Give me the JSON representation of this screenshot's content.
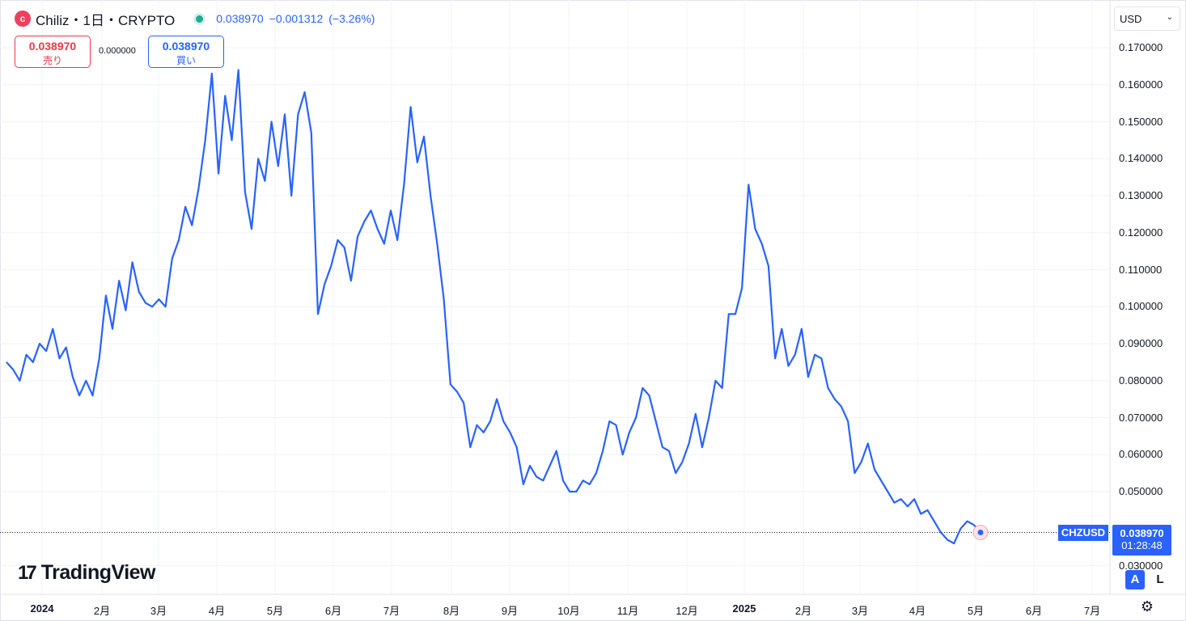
{
  "header": {
    "logo_glyph": "c",
    "symbol_title": "Chiliz・1日・CRYPTO",
    "price": "0.038970",
    "change": "−0.001312",
    "change_pct": "(−3.26%)"
  },
  "quote": {
    "sell_price": "0.038970",
    "sell_label": "売り",
    "spread": "0.000000",
    "buy_price": "0.038970",
    "buy_label": "買い"
  },
  "currency_select": {
    "value": "USD"
  },
  "last_price_label": {
    "symbol": "CHZUSD",
    "price": "0.038970",
    "countdown": "01:28:48"
  },
  "branding": {
    "text": "TradingView"
  },
  "scale_buttons": {
    "auto": "A",
    "log": "L"
  },
  "colors": {
    "line": "#2962ff",
    "accent": "#2962ff",
    "sell": "#f23645",
    "live_dot": "#22ab94"
  },
  "chart_data": {
    "type": "line",
    "series": [
      {
        "values": [
          [
            0,
            0.085
          ],
          [
            1,
            0.083
          ],
          [
            2,
            0.08
          ],
          [
            3,
            0.087
          ],
          [
            4,
            0.085
          ],
          [
            5,
            0.09
          ],
          [
            6,
            0.088
          ],
          [
            7,
            0.094
          ],
          [
            8,
            0.086
          ],
          [
            9,
            0.089
          ],
          [
            10,
            0.081
          ],
          [
            11,
            0.076
          ],
          [
            12,
            0.08
          ],
          [
            13,
            0.076
          ],
          [
            14,
            0.086
          ],
          [
            15,
            0.103
          ],
          [
            16,
            0.094
          ],
          [
            17,
            0.107
          ],
          [
            18,
            0.099
          ],
          [
            19,
            0.112
          ],
          [
            20,
            0.104
          ],
          [
            21,
            0.101
          ],
          [
            22,
            0.1
          ],
          [
            23,
            0.102
          ],
          [
            24,
            0.1
          ],
          [
            25,
            0.113
          ],
          [
            26,
            0.118
          ],
          [
            27,
            0.127
          ],
          [
            28,
            0.122
          ],
          [
            29,
            0.132
          ],
          [
            30,
            0.145
          ],
          [
            31,
            0.163
          ],
          [
            32,
            0.136
          ],
          [
            33,
            0.157
          ],
          [
            34,
            0.145
          ],
          [
            35,
            0.164
          ],
          [
            36,
            0.131
          ],
          [
            37,
            0.121
          ],
          [
            38,
            0.14
          ],
          [
            39,
            0.134
          ],
          [
            40,
            0.15
          ],
          [
            41,
            0.138
          ],
          [
            42,
            0.152
          ],
          [
            43,
            0.13
          ],
          [
            44,
            0.152
          ],
          [
            45,
            0.158
          ],
          [
            46,
            0.147
          ],
          [
            47,
            0.098
          ],
          [
            48,
            0.106
          ],
          [
            49,
            0.111
          ],
          [
            50,
            0.118
          ],
          [
            51,
            0.116
          ],
          [
            52,
            0.107
          ],
          [
            53,
            0.119
          ],
          [
            54,
            0.123
          ],
          [
            55,
            0.126
          ],
          [
            56,
            0.121
          ],
          [
            57,
            0.117
          ],
          [
            58,
            0.126
          ],
          [
            59,
            0.118
          ],
          [
            60,
            0.133
          ],
          [
            61,
            0.154
          ],
          [
            62,
            0.139
          ],
          [
            63,
            0.146
          ],
          [
            64,
            0.13
          ],
          [
            65,
            0.117
          ],
          [
            66,
            0.102
          ],
          [
            67,
            0.079
          ],
          [
            68,
            0.077
          ],
          [
            69,
            0.074
          ],
          [
            70,
            0.062
          ],
          [
            71,
            0.068
          ],
          [
            72,
            0.066
          ],
          [
            73,
            0.069
          ],
          [
            74,
            0.075
          ],
          [
            75,
            0.069
          ],
          [
            76,
            0.066
          ],
          [
            77,
            0.062
          ],
          [
            78,
            0.052
          ],
          [
            79,
            0.057
          ],
          [
            80,
            0.054
          ],
          [
            81,
            0.053
          ],
          [
            82,
            0.057
          ],
          [
            83,
            0.061
          ],
          [
            84,
            0.053
          ],
          [
            85,
            0.05
          ],
          [
            86,
            0.05
          ],
          [
            87,
            0.053
          ],
          [
            88,
            0.052
          ],
          [
            89,
            0.055
          ],
          [
            90,
            0.061
          ],
          [
            91,
            0.069
          ],
          [
            92,
            0.068
          ],
          [
            93,
            0.06
          ],
          [
            94,
            0.066
          ],
          [
            95,
            0.07
          ],
          [
            96,
            0.078
          ],
          [
            97,
            0.076
          ],
          [
            98,
            0.069
          ],
          [
            99,
            0.062
          ],
          [
            100,
            0.061
          ],
          [
            101,
            0.055
          ],
          [
            102,
            0.058
          ],
          [
            103,
            0.063
          ],
          [
            104,
            0.071
          ],
          [
            105,
            0.062
          ],
          [
            106,
            0.07
          ],
          [
            107,
            0.08
          ],
          [
            108,
            0.078
          ],
          [
            109,
            0.098
          ],
          [
            110,
            0.098
          ],
          [
            111,
            0.105
          ],
          [
            112,
            0.133
          ],
          [
            113,
            0.121
          ],
          [
            114,
            0.117
          ],
          [
            115,
            0.111
          ],
          [
            116,
            0.086
          ],
          [
            117,
            0.094
          ],
          [
            118,
            0.084
          ],
          [
            119,
            0.087
          ],
          [
            120,
            0.094
          ],
          [
            121,
            0.081
          ],
          [
            122,
            0.087
          ],
          [
            123,
            0.086
          ],
          [
            124,
            0.078
          ],
          [
            125,
            0.075
          ],
          [
            126,
            0.073
          ],
          [
            127,
            0.069
          ],
          [
            128,
            0.055
          ],
          [
            129,
            0.058
          ],
          [
            130,
            0.063
          ],
          [
            131,
            0.056
          ],
          [
            132,
            0.053
          ],
          [
            133,
            0.05
          ],
          [
            134,
            0.047
          ],
          [
            135,
            0.048
          ],
          [
            136,
            0.046
          ],
          [
            137,
            0.048
          ],
          [
            138,
            0.044
          ],
          [
            139,
            0.045
          ],
          [
            140,
            0.042
          ],
          [
            141,
            0.039
          ],
          [
            142,
            0.037
          ],
          [
            143,
            0.036
          ],
          [
            144,
            0.04
          ],
          [
            145,
            0.042
          ],
          [
            146,
            0.041
          ],
          [
            147,
            0.039
          ]
        ]
      }
    ],
    "x_tick_labels": [
      "2024",
      "2月",
      "3月",
      "4月",
      "5月",
      "6月",
      "7月",
      "8月",
      "9月",
      "10月",
      "11月",
      "12月",
      "2025",
      "2月",
      "3月",
      "4月",
      "5月",
      "6月",
      "7月"
    ],
    "y_tick_labels": [
      "0.170000",
      "0.160000",
      "0.150000",
      "0.140000",
      "0.130000",
      "0.120000",
      "0.110000",
      "0.100000",
      "0.090000",
      "0.080000",
      "0.070000",
      "0.060000",
      "0.050000",
      "0.030000"
    ],
    "ylim": [
      0.03,
      0.172
    ],
    "last_value": 0.03897,
    "grid": true
  }
}
